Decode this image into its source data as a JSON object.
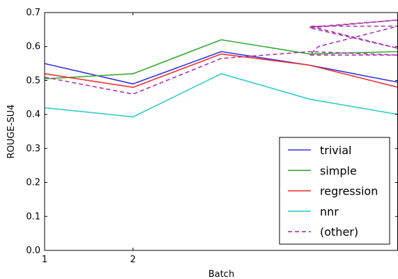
{
  "chart_data": {
    "type": "line",
    "title": "",
    "xlabel": "Batch",
    "ylabel": "ROUGE-SU4",
    "x": [
      1,
      2,
      3,
      4,
      5
    ],
    "xlim": [
      1,
      5
    ],
    "xtick_labels": [
      {
        "x": 1,
        "label": "1"
      },
      {
        "x": 2,
        "label": "2"
      }
    ],
    "ylim": [
      0.0,
      0.7
    ],
    "yticks": [
      {
        "v": 0.0,
        "label": "0.0"
      },
      {
        "v": 0.1,
        "label": "0.1"
      },
      {
        "v": 0.2,
        "label": "0.2"
      },
      {
        "v": 0.3,
        "label": "0.3"
      },
      {
        "v": 0.4,
        "label": "0.4"
      },
      {
        "v": 0.5,
        "label": "0.5"
      },
      {
        "v": 0.6,
        "label": "0.6"
      },
      {
        "v": 0.7,
        "label": "0.7"
      }
    ],
    "grid": false,
    "legend_position": "bottom-right",
    "series": [
      {
        "name": "trivial",
        "color": "#3333dd",
        "dash": "solid",
        "points": [
          [
            1,
            0.55
          ],
          [
            2,
            0.49
          ],
          [
            3,
            0.585
          ],
          [
            4,
            0.545
          ],
          [
            5,
            0.495
          ]
        ]
      },
      {
        "name": "simple",
        "color": "#33aa33",
        "dash": "solid",
        "points": [
          [
            1,
            0.505
          ],
          [
            2,
            0.52
          ],
          [
            3,
            0.62
          ],
          [
            4,
            0.578
          ],
          [
            5,
            0.585
          ]
        ]
      },
      {
        "name": "regression",
        "color": "#ee3333",
        "dash": "solid",
        "points": [
          [
            1,
            0.52
          ],
          [
            2,
            0.48
          ],
          [
            3,
            0.578
          ],
          [
            4,
            0.545
          ],
          [
            5,
            0.48
          ]
        ]
      },
      {
        "name": "nnr",
        "color": "#33cccc",
        "dash": "solid",
        "points": [
          [
            1,
            0.42
          ],
          [
            2,
            0.393
          ],
          [
            3,
            0.52
          ],
          [
            4,
            0.445
          ],
          [
            5,
            0.4
          ]
        ]
      },
      {
        "name": "(other)",
        "color": "#aa33aa",
        "dash": "dashed",
        "points": [
          [
            1,
            0.51
          ],
          [
            2,
            0.46
          ],
          [
            3,
            0.565
          ],
          [
            4,
            0.585
          ],
          [
            5,
            0.575
          ],
          [
            4,
            0.575
          ],
          [
            4.1,
            0.6
          ],
          [
            5,
            0.66
          ],
          [
            4,
            0.66
          ],
          [
            5,
            0.595
          ],
          [
            4,
            0.655
          ],
          [
            5,
            0.678
          ],
          [
            4,
            0.657
          ]
        ]
      }
    ]
  }
}
